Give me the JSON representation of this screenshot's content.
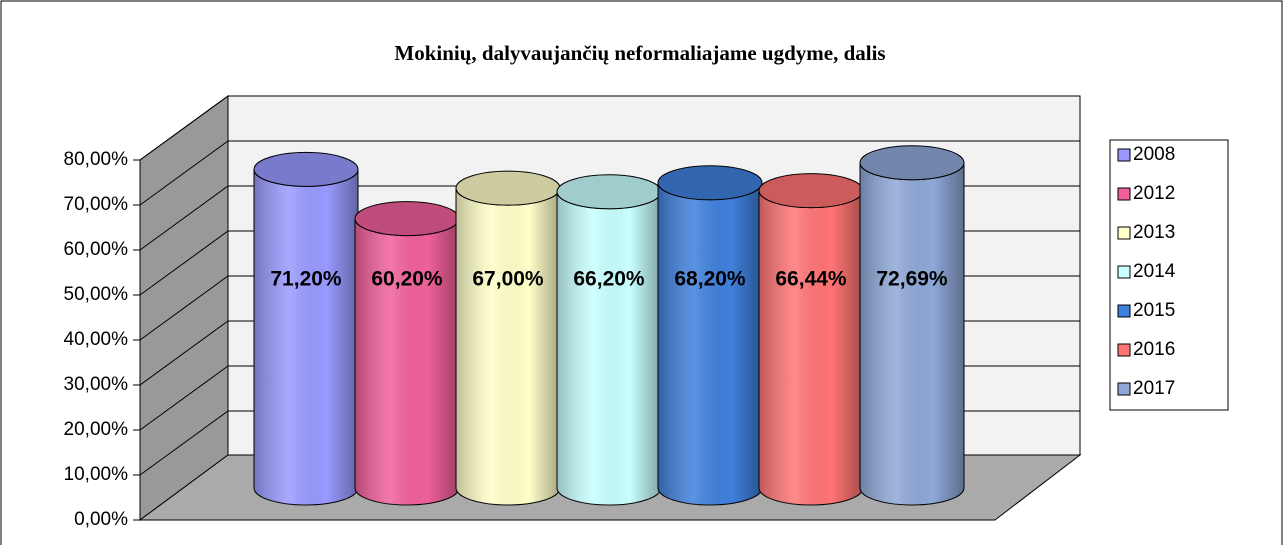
{
  "chart_data": {
    "type": "bar3d",
    "title": "Mokinių, dalyvaujančių neformaliajame ugdyme, dalis",
    "ylim": [
      0,
      80
    ],
    "yticks": [
      {
        "value": 0,
        "label": "0,00%"
      },
      {
        "value": 10,
        "label": "10,00%"
      },
      {
        "value": 20,
        "label": "20,00%"
      },
      {
        "value": 30,
        "label": "30,00%"
      },
      {
        "value": 40,
        "label": "40,00%"
      },
      {
        "value": 50,
        "label": "50,00%"
      },
      {
        "value": 60,
        "label": "60,00%"
      },
      {
        "value": 70,
        "label": "70,00%"
      },
      {
        "value": 80,
        "label": "80,00%"
      }
    ],
    "grid": true,
    "legend": "right",
    "series": [
      {
        "name": "2008",
        "color": "#9999ff",
        "values": [
          71.2
        ],
        "value_labels": [
          "71,20%"
        ]
      },
      {
        "name": "2012",
        "color": "#f0609a",
        "values": [
          60.2
        ],
        "value_labels": [
          "60,20%"
        ]
      },
      {
        "name": "2013",
        "color": "#ffffc8",
        "values": [
          67.0
        ],
        "value_labels": [
          "67,00%"
        ]
      },
      {
        "name": "2014",
        "color": "#c8ffff",
        "values": [
          66.2
        ],
        "value_labels": [
          "66,20%"
        ]
      },
      {
        "name": "2015",
        "color": "#3f80dc",
        "values": [
          68.2
        ],
        "value_labels": [
          "68,20%"
        ]
      },
      {
        "name": "2016",
        "color": "#ff7474",
        "values": [
          66.44
        ],
        "value_labels": [
          "66,44%"
        ]
      },
      {
        "name": "2017",
        "color": "#8fa8d8",
        "values": [
          72.69
        ],
        "value_labels": [
          "72,69%"
        ]
      }
    ]
  }
}
